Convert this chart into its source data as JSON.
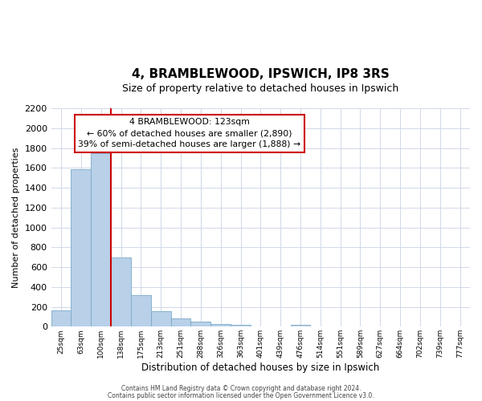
{
  "title": "4, BRAMBLEWOOD, IPSWICH, IP8 3RS",
  "subtitle": "Size of property relative to detached houses in Ipswich",
  "xlabel": "Distribution of detached houses by size in Ipswich",
  "ylabel": "Number of detached properties",
  "bar_color": "#b8d0e8",
  "bar_edge_color": "#7aaac8",
  "tick_labels": [
    "25sqm",
    "63sqm",
    "100sqm",
    "138sqm",
    "175sqm",
    "213sqm",
    "251sqm",
    "288sqm",
    "326sqm",
    "363sqm",
    "401sqm",
    "439sqm",
    "476sqm",
    "514sqm",
    "551sqm",
    "589sqm",
    "627sqm",
    "664sqm",
    "702sqm",
    "739sqm",
    "777sqm"
  ],
  "bar_values": [
    160,
    1590,
    1750,
    700,
    315,
    155,
    80,
    50,
    30,
    15,
    0,
    0,
    15,
    0,
    0,
    0,
    0,
    0,
    0,
    0,
    0
  ],
  "ylim": [
    0,
    2200
  ],
  "yticks": [
    0,
    200,
    400,
    600,
    800,
    1000,
    1200,
    1400,
    1600,
    1800,
    2000,
    2200
  ],
  "vline_x": 2.5,
  "vline_color": "#cc0000",
  "ann_title": "4 BRAMBLEWOOD: 123sqm",
  "ann_line2": "← 60% of detached houses are smaller (2,890)",
  "ann_line3": "39% of semi-detached houses are larger (1,888) →",
  "annotation_box_color": "#ffffff",
  "annotation_box_edge": "#cc0000",
  "footer1": "Contains HM Land Registry data © Crown copyright and database right 2024.",
  "footer2": "Contains public sector information licensed under the Open Government Licence v3.0.",
  "background_color": "#ffffff",
  "grid_color": "#d0d8e8"
}
